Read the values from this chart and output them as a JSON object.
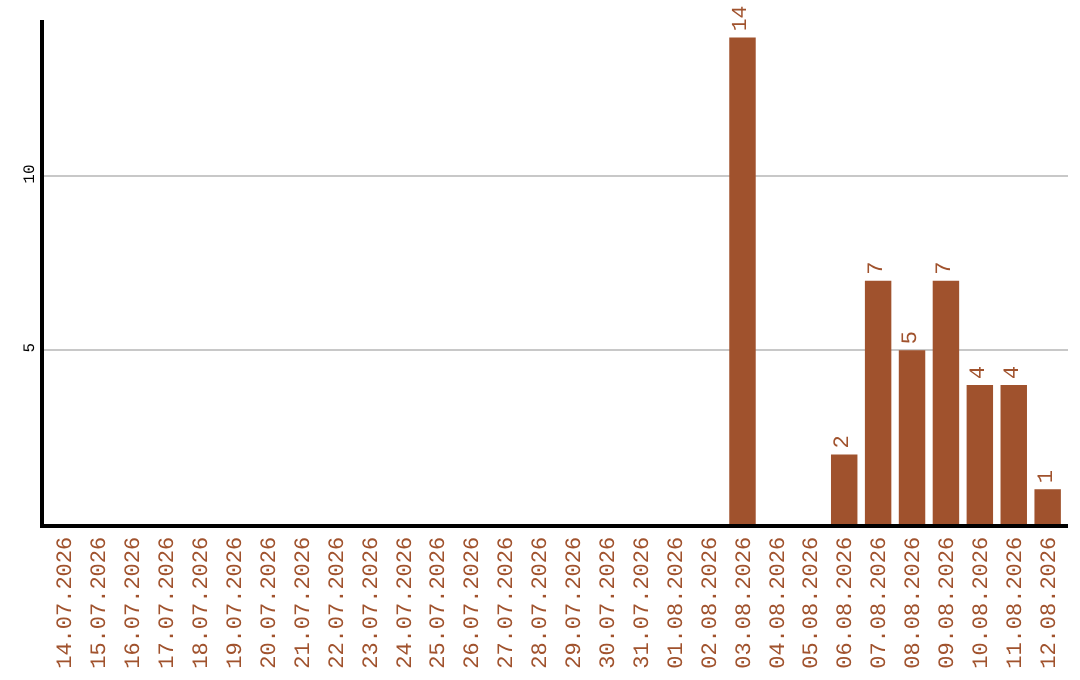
{
  "chart_data": {
    "type": "bar",
    "categories": [
      "14.07.2026",
      "15.07.2026",
      "16.07.2026",
      "17.07.2026",
      "18.07.2026",
      "19.07.2026",
      "20.07.2026",
      "21.07.2026",
      "22.07.2026",
      "23.07.2026",
      "24.07.2026",
      "25.07.2026",
      "26.07.2026",
      "27.07.2026",
      "28.07.2026",
      "29.07.2026",
      "30.07.2026",
      "31.07.2026",
      "01.08.2026",
      "02.08.2026",
      "03.08.2026",
      "04.08.2026",
      "05.08.2026",
      "06.08.2026",
      "07.08.2026",
      "08.08.2026",
      "09.08.2026",
      "10.08.2026",
      "11.08.2026",
      "12.08.2026"
    ],
    "values": [
      0,
      0,
      0,
      0,
      0,
      0,
      0,
      0,
      0,
      0,
      0,
      0,
      0,
      0,
      0,
      0,
      0,
      0,
      0,
      0,
      14,
      0,
      0,
      2,
      7,
      5,
      7,
      4,
      4,
      1
    ],
    "value_labels": [
      null,
      null,
      null,
      null,
      null,
      null,
      null,
      null,
      null,
      null,
      null,
      null,
      null,
      null,
      null,
      null,
      null,
      null,
      null,
      null,
      "14",
      null,
      null,
      "2",
      "7",
      "5",
      "7",
      "4",
      "4",
      "1"
    ],
    "color": "#a0522d",
    "ylim": [
      0,
      14.5
    ],
    "yticks": [
      5,
      10
    ],
    "grid": "y",
    "legend": false
  }
}
